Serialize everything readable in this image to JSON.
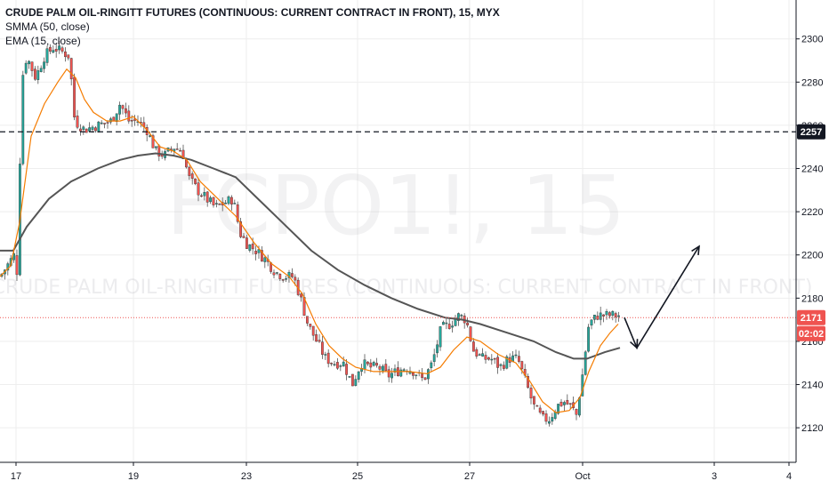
{
  "legend": {
    "title": "CRUDE PALM OIL-RINGITT FUTURES (CONTINUOUS: CURRENT CONTRACT IN FRONT), 15, MYX",
    "smma": "SMMA (50, close)",
    "ema": "EMA (15, close)"
  },
  "watermark": {
    "symbol": "FCPO1!, 15",
    "description": "CRUDE PALM OIL-RINGITT FUTURES (CONTINUOUS: CURRENT CONTRACT IN FRONT)"
  },
  "price_tags": {
    "level": "2257",
    "last": "2171",
    "countdown": "02:02"
  },
  "colors": {
    "up": "#26a69a",
    "down": "#ef5350",
    "wick": "#555555",
    "ema": "#f57c00",
    "smma": "#555555",
    "last_price": "#ef5350",
    "level_line": "#131722",
    "grid": "#eeeeee",
    "axis": "#131722"
  },
  "chart_data": {
    "type": "candlestick",
    "x_tick_labels": [
      "17",
      "19",
      "23",
      "25",
      "27",
      "Oct",
      "3",
      "4"
    ],
    "y_tick_labels": [
      "2120",
      "2140",
      "2160",
      "2180",
      "2200",
      "2220",
      "2240",
      "2260",
      "2280",
      "2300"
    ],
    "ylim": [
      2104,
      2318
    ],
    "xlim": [
      0,
      895
    ],
    "horizontal_level": 2257,
    "last_price": 2171,
    "price_anchors": [
      [
        0,
        2190
      ],
      [
        8,
        2195
      ],
      [
        16,
        2200
      ],
      [
        20,
        2190
      ],
      [
        24,
        2280
      ],
      [
        30,
        2292
      ],
      [
        40,
        2282
      ],
      [
        50,
        2292
      ],
      [
        60,
        2296
      ],
      [
        70,
        2294
      ],
      [
        78,
        2292
      ],
      [
        84,
        2262
      ],
      [
        95,
        2258
      ],
      [
        110,
        2260
      ],
      [
        125,
        2262
      ],
      [
        135,
        2270
      ],
      [
        145,
        2262
      ],
      [
        155,
        2262
      ],
      [
        165,
        2258
      ],
      [
        175,
        2248
      ],
      [
        185,
        2246
      ],
      [
        195,
        2250
      ],
      [
        205,
        2248
      ],
      [
        212,
        2236
      ],
      [
        222,
        2230
      ],
      [
        232,
        2226
      ],
      [
        242,
        2222
      ],
      [
        252,
        2224
      ],
      [
        262,
        2226
      ],
      [
        270,
        2210
      ],
      [
        278,
        2205
      ],
      [
        288,
        2202
      ],
      [
        298,
        2198
      ],
      [
        310,
        2192
      ],
      [
        320,
        2190
      ],
      [
        330,
        2190
      ],
      [
        338,
        2180
      ],
      [
        346,
        2168
      ],
      [
        356,
        2160
      ],
      [
        366,
        2152
      ],
      [
        376,
        2150
      ],
      [
        386,
        2150
      ],
      [
        396,
        2140
      ],
      [
        406,
        2150
      ],
      [
        416,
        2148
      ],
      [
        426,
        2148
      ],
      [
        436,
        2144
      ],
      [
        446,
        2146
      ],
      [
        456,
        2148
      ],
      [
        466,
        2146
      ],
      [
        476,
        2142
      ],
      [
        486,
        2150
      ],
      [
        496,
        2166
      ],
      [
        506,
        2168
      ],
      [
        516,
        2172
      ],
      [
        524,
        2170
      ],
      [
        532,
        2156
      ],
      [
        542,
        2152
      ],
      [
        552,
        2152
      ],
      [
        562,
        2148
      ],
      [
        572,
        2152
      ],
      [
        582,
        2152
      ],
      [
        592,
        2140
      ],
      [
        600,
        2130
      ],
      [
        610,
        2124
      ],
      [
        618,
        2124
      ],
      [
        626,
        2130
      ],
      [
        634,
        2132
      ],
      [
        642,
        2130
      ],
      [
        648,
        2126
      ],
      [
        655,
        2145
      ],
      [
        662,
        2168
      ],
      [
        672,
        2172
      ],
      [
        682,
        2172
      ],
      [
        690,
        2172
      ],
      [
        698,
        2172
      ]
    ],
    "ema_15": [
      [
        0,
        2190
      ],
      [
        12,
        2195
      ],
      [
        22,
        2215
      ],
      [
        35,
        2255
      ],
      [
        50,
        2270
      ],
      [
        65,
        2280
      ],
      [
        75,
        2286
      ],
      [
        85,
        2282
      ],
      [
        95,
        2272
      ],
      [
        105,
        2266
      ],
      [
        120,
        2262
      ],
      [
        135,
        2262
      ],
      [
        150,
        2264
      ],
      [
        165,
        2258
      ],
      [
        180,
        2250
      ],
      [
        195,
        2248
      ],
      [
        210,
        2244
      ],
      [
        225,
        2234
      ],
      [
        245,
        2226
      ],
      [
        265,
        2218
      ],
      [
        285,
        2206
      ],
      [
        305,
        2196
      ],
      [
        325,
        2190
      ],
      [
        340,
        2182
      ],
      [
        355,
        2168
      ],
      [
        370,
        2158
      ],
      [
        385,
        2152
      ],
      [
        400,
        2148
      ],
      [
        420,
        2146
      ],
      [
        440,
        2146
      ],
      [
        460,
        2146
      ],
      [
        480,
        2145
      ],
      [
        495,
        2148
      ],
      [
        510,
        2156
      ],
      [
        525,
        2162
      ],
      [
        540,
        2160
      ],
      [
        560,
        2154
      ],
      [
        580,
        2150
      ],
      [
        595,
        2142
      ],
      [
        610,
        2132
      ],
      [
        625,
        2127
      ],
      [
        640,
        2128
      ],
      [
        652,
        2134
      ],
      [
        662,
        2146
      ],
      [
        675,
        2158
      ],
      [
        686,
        2164
      ],
      [
        695,
        2168
      ]
    ],
    "smma_50": [
      [
        0,
        2202
      ],
      [
        15,
        2202
      ],
      [
        30,
        2213
      ],
      [
        55,
        2226
      ],
      [
        80,
        2234
      ],
      [
        110,
        2240
      ],
      [
        135,
        2244
      ],
      [
        155,
        2246
      ],
      [
        175,
        2247
      ],
      [
        195,
        2246
      ],
      [
        215,
        2244
      ],
      [
        240,
        2240
      ],
      [
        265,
        2236
      ],
      [
        290,
        2226
      ],
      [
        320,
        2214
      ],
      [
        350,
        2202
      ],
      [
        380,
        2193
      ],
      [
        410,
        2186
      ],
      [
        440,
        2180
      ],
      [
        470,
        2175
      ],
      [
        500,
        2171
      ],
      [
        520,
        2170
      ],
      [
        540,
        2168
      ],
      [
        570,
        2164
      ],
      [
        600,
        2160
      ],
      [
        625,
        2155
      ],
      [
        645,
        2152
      ],
      [
        660,
        2152
      ],
      [
        680,
        2155
      ],
      [
        697,
        2157
      ]
    ],
    "forecast_path": [
      [
        702,
        2171
      ],
      [
        716,
        2157
      ],
      [
        786,
        2204
      ]
    ]
  }
}
